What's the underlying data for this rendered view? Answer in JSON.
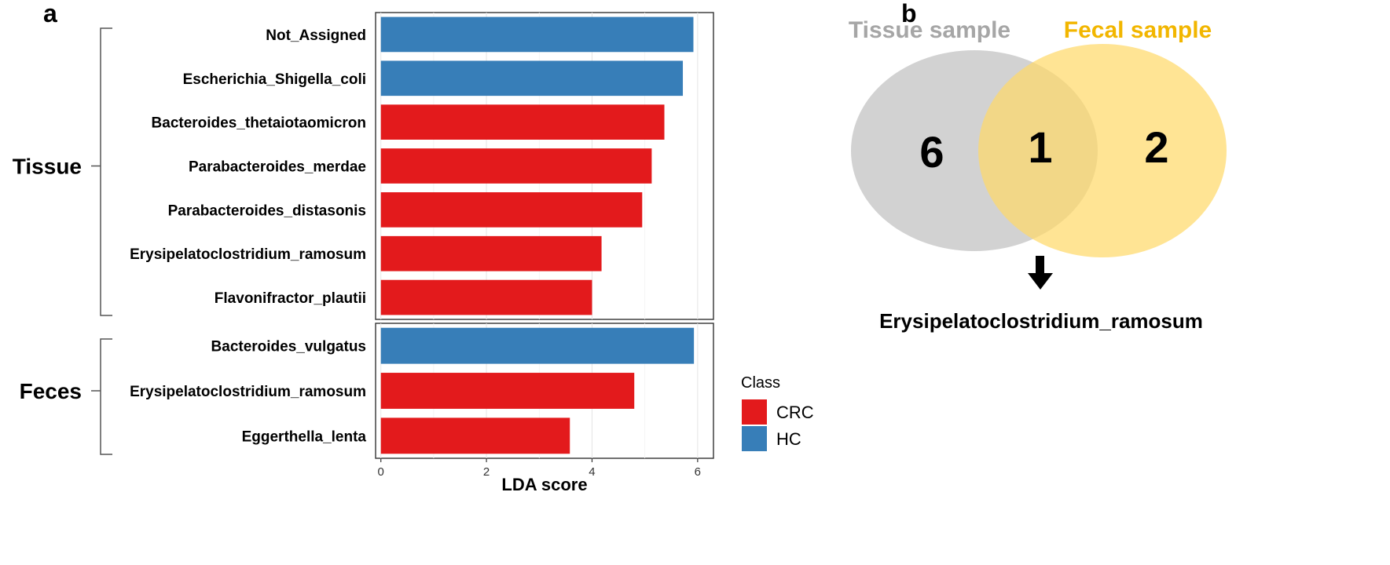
{
  "panels": {
    "a_label": "a",
    "b_label": "b"
  },
  "chart_data": [
    {
      "type": "bar",
      "orientation": "horizontal",
      "xlabel": "LDA score",
      "xlim": [
        -0.1,
        6.3
      ],
      "xticks": [
        0,
        2,
        4,
        6
      ],
      "grid": true,
      "facets": [
        {
          "name": "Tissue",
          "categories": [
            "Not_Assigned",
            "Escherichia_Shigella_coli",
            "Bacteroides_thetaiotaomicron",
            "Parabacteroides_merdae",
            "Parabacteroides_distasonis",
            "Erysipelatoclostridium_ramosum",
            "Flavonifractor_plautii"
          ],
          "values": [
            5.92,
            5.72,
            5.37,
            5.13,
            4.95,
            4.18,
            4.0
          ],
          "classes": [
            "HC",
            "HC",
            "CRC",
            "CRC",
            "CRC",
            "CRC",
            "CRC"
          ]
        },
        {
          "name": "Feces",
          "categories": [
            "Bacteroides_vulgatus",
            "Erysipelatoclostridium_ramosum",
            "Eggerthella_lenta"
          ],
          "values": [
            5.93,
            4.8,
            3.58
          ],
          "classes": [
            "HC",
            "CRC",
            "CRC"
          ]
        }
      ],
      "legend": {
        "title": "Class",
        "position": "right",
        "entries": [
          {
            "name": "CRC",
            "color": "#e31a1c"
          },
          {
            "name": "HC",
            "color": "#377eb8"
          }
        ]
      }
    },
    {
      "type": "venn",
      "sets": [
        {
          "name": "Tissue sample",
          "color": "#bfbfbf",
          "title_color": "#a6a6a6",
          "only_count": "6"
        },
        {
          "name": "Fecal sample",
          "color": "#ffd966",
          "title_color": "#f2b600",
          "only_count": "2"
        }
      ],
      "intersection_count": "1",
      "intersection_label": "Erysipelatoclostridium_ramosum"
    }
  ]
}
